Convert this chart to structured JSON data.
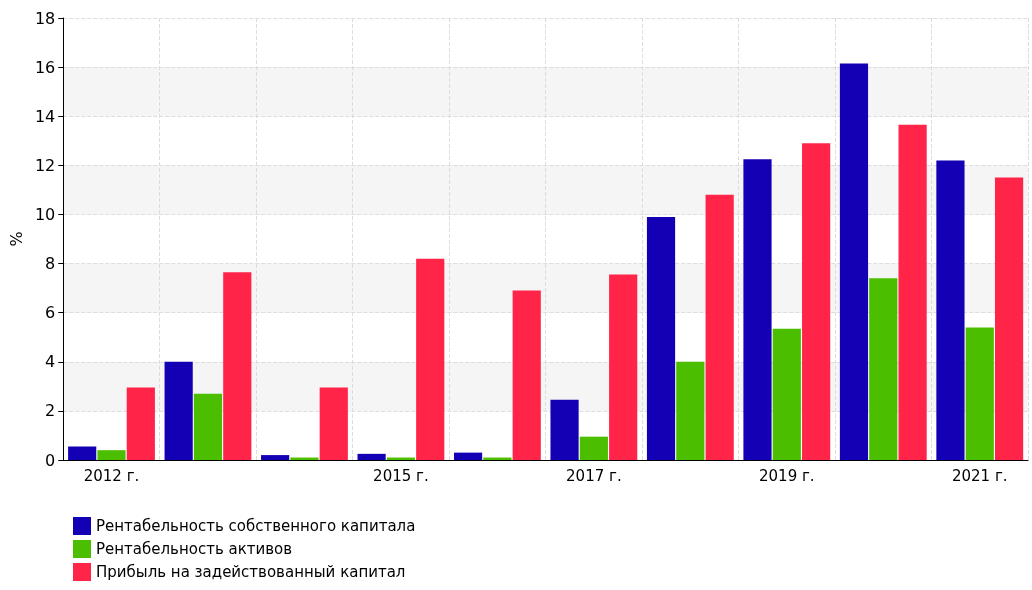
{
  "chart_data": {
    "type": "bar",
    "ylabel": "%",
    "categories": [
      "2012 г.",
      null,
      null,
      "2015 г.",
      null,
      "2017 г.",
      null,
      "2019 г.",
      null,
      "2021 г."
    ],
    "series": [
      {
        "name": "Рентабельность собственного капитала",
        "color": "#1400b4",
        "values": [
          0.55,
          4.0,
          0.2,
          0.25,
          0.3,
          2.45,
          9.9,
          12.25,
          16.15,
          12.2
        ]
      },
      {
        "name": "Рентабельность активов",
        "color": "#4cbe00",
        "values": [
          0.4,
          2.7,
          0.1,
          0.1,
          0.1,
          0.95,
          4.0,
          5.35,
          7.4,
          5.4
        ]
      },
      {
        "name": "Прибыль на задействованный капитал",
        "color": "#ff2448",
        "values": [
          2.95,
          7.65,
          2.95,
          8.2,
          6.9,
          7.55,
          10.8,
          12.9,
          13.65,
          11.5
        ]
      }
    ],
    "ylim": [
      0,
      18
    ],
    "yticks": [
      0,
      2,
      4,
      6,
      8,
      10,
      12,
      14,
      16,
      18
    ],
    "grid": true,
    "legend": "bottom left"
  }
}
